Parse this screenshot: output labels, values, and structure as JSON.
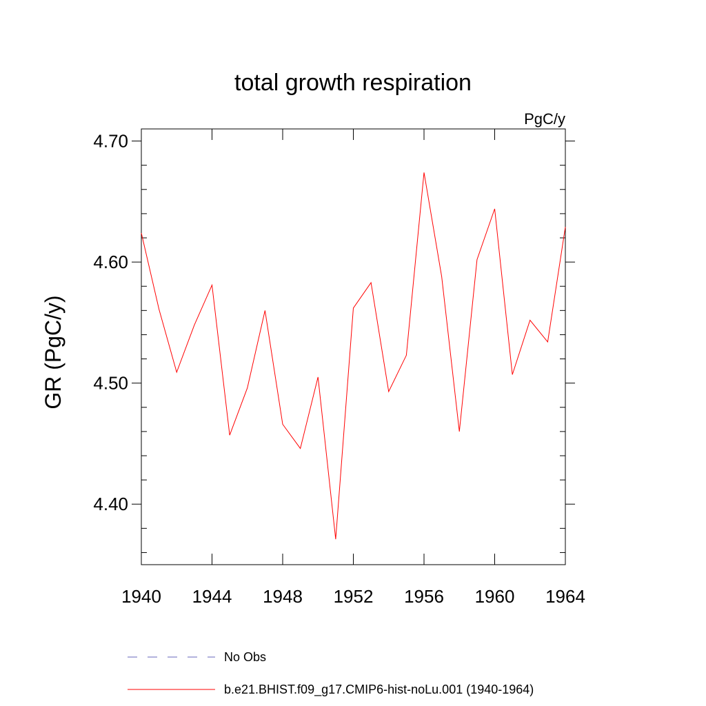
{
  "chart_data": {
    "type": "line",
    "title": "total growth respiration",
    "units": "PgC/y",
    "ylabel": "GR  (PgC/y)",
    "xlabel": "",
    "xlim": [
      1940,
      1964
    ],
    "ylim": [
      4.35,
      4.71
    ],
    "x_ticks": [
      1940,
      1944,
      1948,
      1952,
      1956,
      1960,
      1964
    ],
    "x_tick_labels": [
      "1940",
      "1944",
      "1948",
      "1952",
      "1956",
      "1960",
      "1964"
    ],
    "y_ticks": [
      4.4,
      4.5,
      4.6,
      4.7
    ],
    "y_tick_labels": [
      "4.40",
      "4.50",
      "4.60",
      "4.70"
    ],
    "y_minor_step": 0.02,
    "grid": false,
    "legend_position": "bottom",
    "series": [
      {
        "name": "b.e21.BHIST.f09_g17.CMIP6-hist-noLu.001 (1940-1964)",
        "color": "#ff0000",
        "style": "solid",
        "x": [
          1940,
          1941,
          1942,
          1943,
          1944,
          1945,
          1946,
          1947,
          1948,
          1949,
          1950,
          1951,
          1952,
          1953,
          1954,
          1955,
          1956,
          1957,
          1958,
          1959,
          1960,
          1961,
          1962,
          1963,
          1964
        ],
        "y": [
          4.624,
          4.561,
          4.509,
          4.548,
          4.581,
          4.457,
          4.496,
          4.56,
          4.466,
          4.446,
          4.505,
          4.371,
          4.562,
          4.583,
          4.493,
          4.523,
          4.674,
          4.588,
          4.46,
          4.602,
          4.644,
          4.507,
          4.552,
          4.534,
          4.629
        ]
      }
    ],
    "legend": [
      {
        "label": "No Obs",
        "color": "#6666bb",
        "style": "dashed"
      },
      {
        "label": "b.e21.BHIST.f09_g17.CMIP6-hist-noLu.001 (1940-1964)",
        "color": "#ff0000",
        "style": "solid"
      }
    ]
  }
}
